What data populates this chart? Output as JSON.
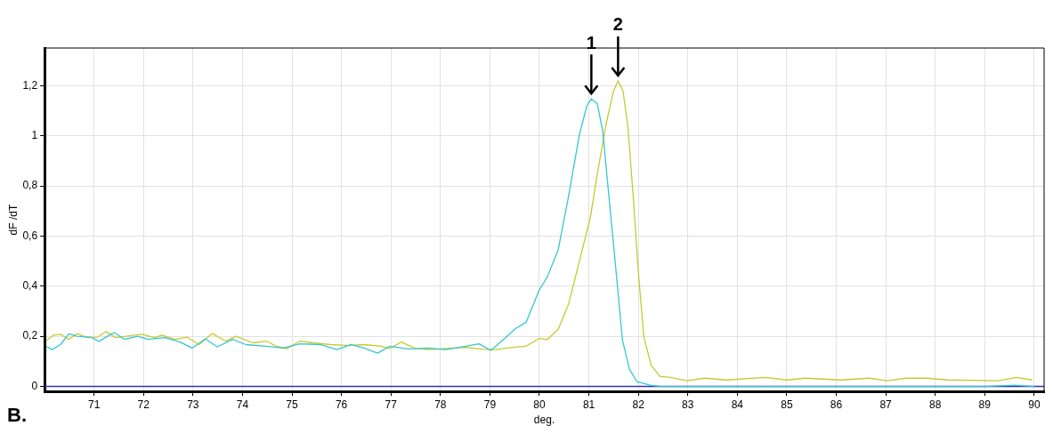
{
  "chart_data": {
    "type": "line",
    "xlabel": "deg.",
    "ylabel": "dF /dT",
    "xlim": [
      70,
      90.2
    ],
    "ylim": [
      -0.02,
      1.35
    ],
    "xticks": [
      71,
      72,
      73,
      74,
      75,
      76,
      77,
      78,
      79,
      80,
      81,
      82,
      83,
      84,
      85,
      86,
      87,
      88,
      89,
      90
    ],
    "yticks": [
      0,
      {
        "value": 0.2,
        "label": "0,2"
      },
      {
        "value": 0.4,
        "label": "0,4"
      },
      {
        "value": 0.6,
        "label": "0,6"
      },
      {
        "value": 0.8,
        "label": "0,8"
      },
      1,
      {
        "value": 1.2,
        "label": "1,2"
      }
    ],
    "grid": true,
    "legend": false,
    "marker": "none",
    "line_style": "solid",
    "series": [
      {
        "color": "#33c8d0",
        "x": [
          70.04,
          70.15,
          70.32,
          70.49,
          70.66,
          70.93,
          71.1,
          71.27,
          71.41,
          71.61,
          71.89,
          72.09,
          72.43,
          72.74,
          72.98,
          73.25,
          73.49,
          73.8,
          74.07,
          74.48,
          74.82,
          75.16,
          75.57,
          75.91,
          76.19,
          76.46,
          76.73,
          76.97,
          77.35,
          77.76,
          78.1,
          78.51,
          78.78,
          79.02,
          79.29,
          79.51,
          79.73,
          80,
          80.16,
          80.38,
          80.59,
          80.81,
          80.96,
          81.05,
          81.17,
          81.28,
          81.39,
          81.53,
          81.68,
          81.82,
          81.97,
          82.26,
          82.47,
          83,
          84,
          85,
          86,
          87,
          88,
          89,
          89.6,
          90
        ],
        "values": [
          0.16,
          0.147,
          0.167,
          0.21,
          0.2,
          0.197,
          0.18,
          0.2,
          0.215,
          0.188,
          0.2,
          0.188,
          0.195,
          0.177,
          0.153,
          0.19,
          0.158,
          0.188,
          0.167,
          0.16,
          0.153,
          0.17,
          0.167,
          0.147,
          0.167,
          0.153,
          0.133,
          0.16,
          0.15,
          0.153,
          0.147,
          0.16,
          0.17,
          0.144,
          0.19,
          0.23,
          0.256,
          0.386,
          0.437,
          0.545,
          0.76,
          1.006,
          1.12,
          1.147,
          1.128,
          1.02,
          0.79,
          0.5,
          0.184,
          0.069,
          0.019,
          0.004,
          0,
          0,
          0,
          0,
          0,
          0,
          0,
          0,
          0.005,
          0
        ]
      },
      {
        "color": "#c8c832",
        "x": [
          70.04,
          70.18,
          70.32,
          70.49,
          70.66,
          70.86,
          71.07,
          71.24,
          71.44,
          71.68,
          71.96,
          72.23,
          72.37,
          72.64,
          72.88,
          73.12,
          73.39,
          73.66,
          73.87,
          74.21,
          74.48,
          74.69,
          74.9,
          75.16,
          75.43,
          75.78,
          76.12,
          76.46,
          76.81,
          76.97,
          77.21,
          77.48,
          77.76,
          78.1,
          78.51,
          78.85,
          79.12,
          79.46,
          79.72,
          80,
          80.16,
          80.38,
          80.59,
          80.81,
          81.03,
          81.17,
          81.35,
          81.5,
          81.59,
          81.69,
          81.79,
          81.9,
          82,
          82.11,
          82.26,
          82.44,
          82.62,
          82.98,
          83.34,
          83.78,
          84.57,
          85,
          85.37,
          86.09,
          86.67,
          87.03,
          87.4,
          87.83,
          88.26,
          89.28,
          89.64,
          89.96
        ],
        "values": [
          0.184,
          0.205,
          0.208,
          0.188,
          0.211,
          0.195,
          0.197,
          0.219,
          0.195,
          0.201,
          0.208,
          0.195,
          0.205,
          0.188,
          0.197,
          0.167,
          0.211,
          0.181,
          0.2,
          0.174,
          0.181,
          0.16,
          0.151,
          0.181,
          0.174,
          0.167,
          0.164,
          0.167,
          0.16,
          0.151,
          0.177,
          0.153,
          0.147,
          0.151,
          0.156,
          0.149,
          0.147,
          0.156,
          0.16,
          0.192,
          0.187,
          0.228,
          0.329,
          0.501,
          0.674,
          0.847,
          1.049,
          1.179,
          1.219,
          1.179,
          1.035,
          0.746,
          0.458,
          0.199,
          0.084,
          0.04,
          0.037,
          0.023,
          0.033,
          0.026,
          0.036,
          0.026,
          0.033,
          0.026,
          0.033,
          0.023,
          0.033,
          0.033,
          0.026,
          0.023,
          0.036,
          0.026
        ]
      }
    ],
    "ref_lines": [
      {
        "axis": "y",
        "value": 0,
        "color": "#3333aa"
      }
    ],
    "annotations": [
      {
        "text": "1",
        "x": 81.05,
        "y": 1.147
      },
      {
        "text": "2",
        "x": 81.59,
        "y": 1.219
      },
      "B."
    ]
  }
}
